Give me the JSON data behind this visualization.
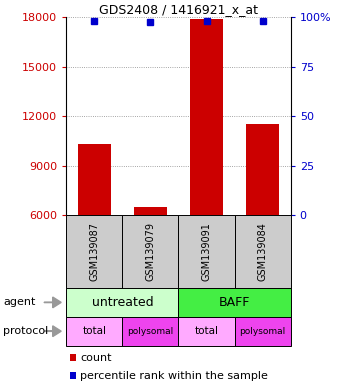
{
  "title": "GDS2408 / 1416921_x_at",
  "samples": [
    "GSM139087",
    "GSM139079",
    "GSM139091",
    "GSM139084"
  ],
  "bar_values": [
    10300,
    6500,
    17900,
    11500
  ],
  "percentile_values": [
    17800,
    17700,
    17800,
    17800
  ],
  "ylim": [
    6000,
    18000
  ],
  "yticks": [
    6000,
    9000,
    12000,
    15000,
    18000
  ],
  "ytick_labels": [
    "6000",
    "9000",
    "12000",
    "15000",
    "18000"
  ],
  "right_yticks": [
    0,
    25,
    50,
    75,
    100
  ],
  "right_ytick_labels": [
    "0",
    "25",
    "50",
    "75",
    "100%"
  ],
  "bar_color": "#cc0000",
  "percentile_color": "#0000cc",
  "bar_width": 0.6,
  "agent_row": [
    {
      "label": "untreated",
      "span": [
        0,
        2
      ],
      "color": "#ccffcc"
    },
    {
      "label": "BAFF",
      "span": [
        2,
        4
      ],
      "color": "#44ee44"
    }
  ],
  "protocol_row": [
    {
      "label": "total",
      "span": [
        0,
        1
      ],
      "color": "#ffaaff"
    },
    {
      "label": "polysomal",
      "span": [
        1,
        2
      ],
      "color": "#ee44ee"
    },
    {
      "label": "total",
      "span": [
        2,
        3
      ],
      "color": "#ffaaff"
    },
    {
      "label": "polysomal",
      "span": [
        3,
        4
      ],
      "color": "#ee44ee"
    }
  ],
  "sample_box_color": "#cccccc",
  "grid_color": "#888888",
  "left_label_color": "#cc0000",
  "right_label_color": "#0000cc",
  "title_fontsize": 9,
  "tick_fontsize": 8,
  "sample_fontsize": 7,
  "agent_fontsize": 9,
  "protocol_fontsize": 8,
  "legend_fontsize": 8
}
